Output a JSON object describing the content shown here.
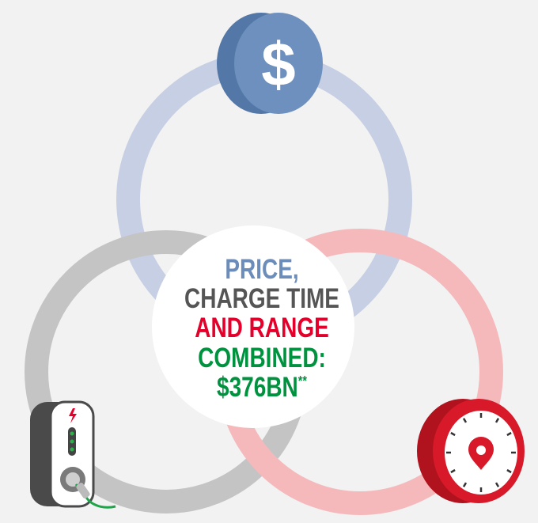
{
  "center_text": {
    "line1": "PRICE,",
    "line2": "CHARGE TIME",
    "line3": "AND RANGE",
    "line4": "COMBINED:",
    "line5": "$376BN",
    "footnote_mark": "**"
  },
  "icons": {
    "coin_symbol": "$"
  }
}
